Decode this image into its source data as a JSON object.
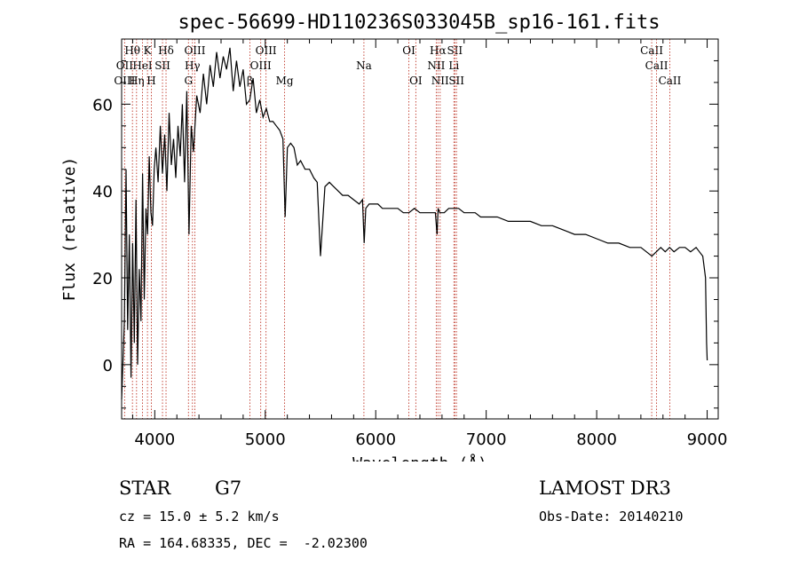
{
  "chart_data": {
    "type": "line",
    "title": "spec-56699-HD110236S033045B_sp16-161.fits",
    "xlabel": "Wavelength (Å)",
    "ylabel": "Flux (relative)",
    "xlim": [
      3700,
      9100
    ],
    "ylim": [
      -12.5,
      75
    ],
    "xticks": [
      4000,
      5000,
      6000,
      7000,
      8000,
      9000
    ],
    "xtick_labels": [
      "4000",
      "5000",
      "6000",
      "7000",
      "8000",
      "9000"
    ],
    "yticks": [
      0,
      20,
      40,
      60
    ],
    "ytick_labels": [
      "0",
      "20",
      "40",
      "60"
    ],
    "series": [
      {
        "name": "flux",
        "x": [
          3700,
          3725,
          3740,
          3755,
          3770,
          3785,
          3800,
          3815,
          3830,
          3845,
          3860,
          3875,
          3890,
          3905,
          3920,
          3935,
          3950,
          3965,
          3980,
          3995,
          4010,
          4030,
          4050,
          4070,
          4090,
          4110,
          4130,
          4150,
          4170,
          4190,
          4210,
          4230,
          4250,
          4270,
          4290,
          4310,
          4330,
          4350,
          4380,
          4410,
          4440,
          4470,
          4500,
          4530,
          4560,
          4590,
          4620,
          4650,
          4680,
          4710,
          4740,
          4770,
          4800,
          4830,
          4860,
          4890,
          4920,
          4950,
          4980,
          5010,
          5040,
          5070,
          5100,
          5130,
          5160,
          5180,
          5200,
          5230,
          5260,
          5290,
          5320,
          5360,
          5400,
          5440,
          5470,
          5500,
          5540,
          5580,
          5620,
          5660,
          5700,
          5750,
          5800,
          5850,
          5880,
          5895,
          5910,
          5940,
          5980,
          6020,
          6060,
          6100,
          6150,
          6200,
          6250,
          6300,
          6350,
          6400,
          6450,
          6500,
          6540,
          6555,
          6565,
          6580,
          6620,
          6660,
          6700,
          6750,
          6800,
          6850,
          6900,
          6950,
          7000,
          7100,
          7200,
          7300,
          7400,
          7500,
          7600,
          7700,
          7800,
          7900,
          8000,
          8100,
          8200,
          8300,
          8400,
          8450,
          8500,
          8540,
          8580,
          8620,
          8660,
          8700,
          8750,
          8800,
          8850,
          8900,
          8930,
          8960,
          8985,
          8995,
          9000
        ],
        "y": [
          -8,
          10,
          45,
          8,
          30,
          -3,
          28,
          5,
          38,
          0,
          22,
          10,
          44,
          15,
          36,
          30,
          48,
          35,
          32,
          45,
          50,
          42,
          55,
          44,
          53,
          40,
          58,
          46,
          52,
          43,
          55,
          48,
          60,
          42,
          63,
          30,
          55,
          49,
          62,
          58,
          67,
          60,
          69,
          64,
          72,
          66,
          71,
          68,
          73,
          63,
          70,
          64,
          68,
          60,
          61,
          66,
          58,
          61,
          57,
          59,
          56,
          56,
          55,
          54,
          52,
          34,
          50,
          51,
          50,
          46,
          47,
          45,
          45,
          43,
          42,
          25,
          41,
          42,
          41,
          40,
          39,
          39,
          38,
          37,
          38,
          28,
          36,
          37,
          37,
          37,
          36,
          36,
          36,
          36,
          35,
          35,
          36,
          35,
          35,
          35,
          35,
          30,
          36,
          35,
          35,
          36,
          36,
          36,
          35,
          35,
          35,
          34,
          34,
          34,
          33,
          33,
          33,
          32,
          32,
          31,
          30,
          30,
          29,
          28,
          28,
          27,
          27,
          26,
          25,
          26,
          27,
          26,
          27,
          26,
          27,
          27,
          26,
          27,
          26,
          25,
          20,
          5,
          1
        ]
      }
    ],
    "line_markers": [
      {
        "label": "Hθ",
        "wavelength": 3798,
        "row": 1
      },
      {
        "label": "OII",
        "wavelength": 3727,
        "row": 2
      },
      {
        "label": "OIII",
        "wavelength": 3727,
        "row": 3
      },
      {
        "label": "K",
        "wavelength": 3934,
        "row": 1
      },
      {
        "label": "HeI",
        "wavelength": 3889,
        "row": 2
      },
      {
        "label": "Hη",
        "wavelength": 3835,
        "row": 3
      },
      {
        "label": "Hδ",
        "wavelength": 4102,
        "row": 1
      },
      {
        "label": "SII",
        "wavelength": 4070,
        "row": 2
      },
      {
        "label": "H",
        "wavelength": 3969,
        "row": 3
      },
      {
        "label": "OIII",
        "wavelength": 4363,
        "row": 1
      },
      {
        "label": "Hγ",
        "wavelength": 4341,
        "row": 2
      },
      {
        "label": "G",
        "wavelength": 4305,
        "row": 3
      },
      {
        "label": "OIII",
        "wavelength": 5007,
        "row": 1
      },
      {
        "label": "OIII",
        "wavelength": 4959,
        "row": 2
      },
      {
        "label": "β",
        "wavelength": 4861,
        "row": 3
      },
      {
        "label": "Mg",
        "wavelength": 5175,
        "row": 3
      },
      {
        "label": "Na",
        "wavelength": 5893,
        "row": 2
      },
      {
        "label": "OI",
        "wavelength": 6300,
        "row": 1
      },
      {
        "label": "OI",
        "wavelength": 6363,
        "row": 3
      },
      {
        "label": "Hα",
        "wavelength": 6563,
        "row": 1
      },
      {
        "label": "SII",
        "wavelength": 6716,
        "row": 1
      },
      {
        "label": "NII",
        "wavelength": 6548,
        "row": 2
      },
      {
        "label": "Li",
        "wavelength": 6708,
        "row": 2
      },
      {
        "label": "NII",
        "wavelength": 6583,
        "row": 3
      },
      {
        "label": "SII",
        "wavelength": 6731,
        "row": 3
      },
      {
        "label": "CaII",
        "wavelength": 8498,
        "row": 1
      },
      {
        "label": "CaII",
        "wavelength": 8542,
        "row": 2
      },
      {
        "label": "CaII",
        "wavelength": 8662,
        "row": 3
      }
    ]
  },
  "info": {
    "object_class": "STAR",
    "subclass": "G7",
    "survey": "LAMOST DR3",
    "redshift": "cz = 15.0 ± 5.2 km/s",
    "obs_date": "Obs-Date: 20140210",
    "coords": "RA = 164.68335, DEC =  -2.02300"
  },
  "colors": {
    "marker_line": "#c0392b",
    "spectrum": "#000000",
    "axes": "#000000"
  }
}
